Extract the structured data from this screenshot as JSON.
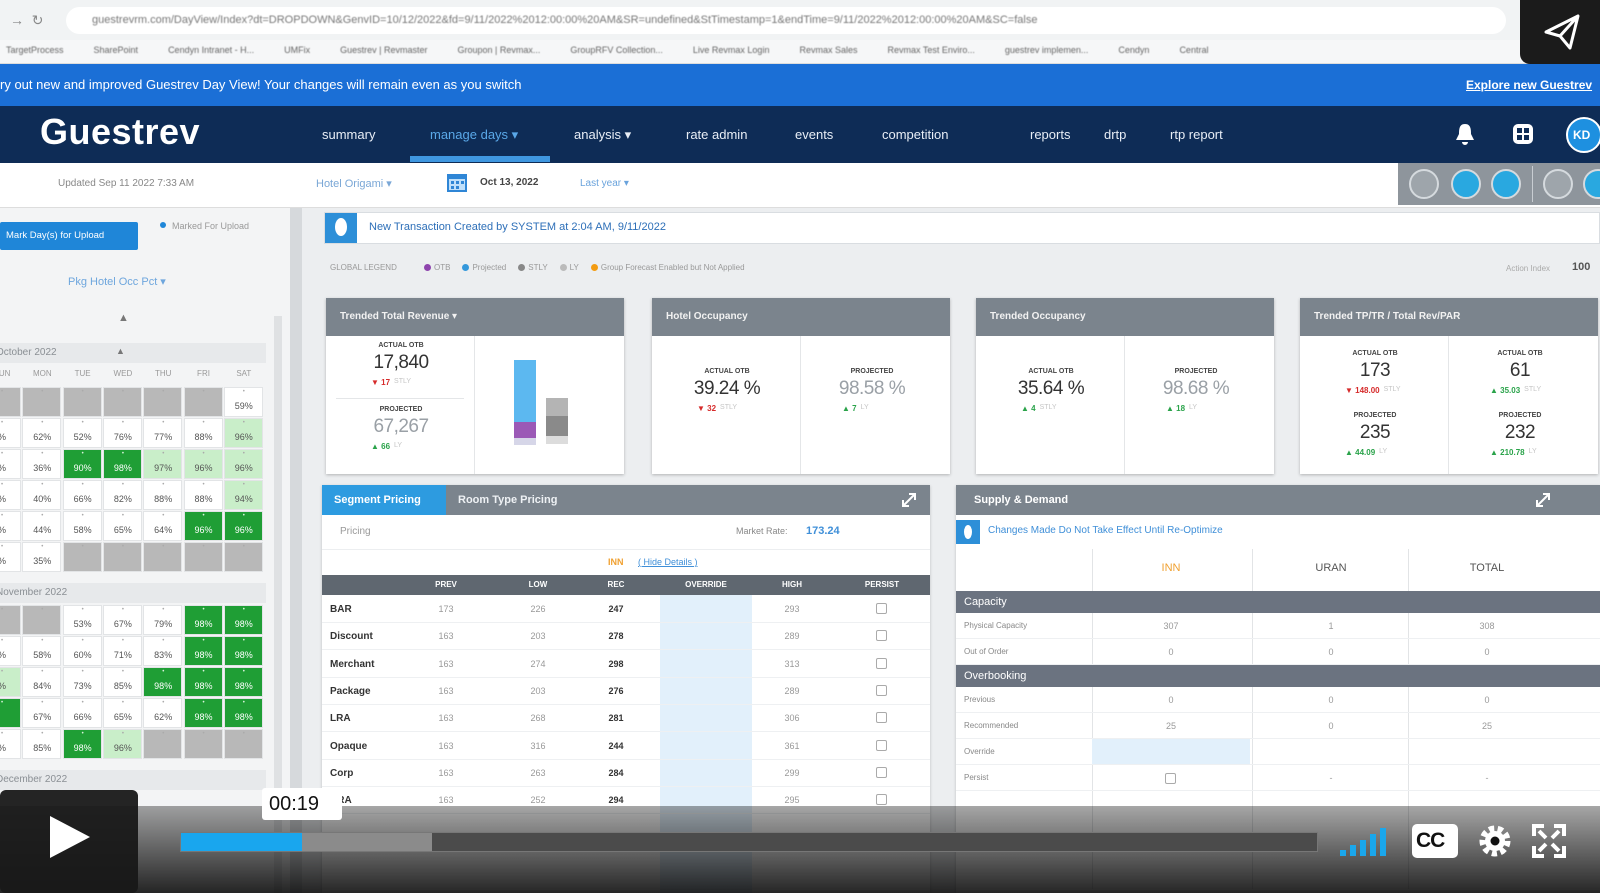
{
  "browser": {
    "url": "guestrevrm.com/DayView/Index?dt=DROPDOWN&GenvID=10/12/2022&fd=9/11/2022%2012:00:00%20AM&SR=undefined&StTimestamp=1&endTime=9/11/2022%2012:00:00%20AM&SC=false",
    "bookmarks": [
      "TargetProcess",
      "SharePoint",
      "Cendyn Intranet - H...",
      "UMFix",
      "Guestrev | Revmaster",
      "Groupon | Revmax...",
      "GroupRFV Collection...",
      "Live Revmax Login",
      "Revmax Sales",
      "Revmax Test Enviro...",
      "guestrev implemen...",
      "Cendyn",
      "Central"
    ]
  },
  "banner": {
    "message": "ry out new and improved Guestrev Day View! Your changes will remain even as you switch",
    "link": "Explore new Guestrev"
  },
  "nav": {
    "logo": "Guestrev",
    "items": [
      "summary",
      "manage days ▾",
      "analysis ▾",
      "rate admin",
      "events",
      "competition",
      "reports",
      "drtp",
      "rtp report"
    ],
    "active": 1,
    "avatar": "KD"
  },
  "subbar": {
    "updated": "Updated Sep 11 2022 7:33 AM",
    "hotel": "Hotel Origami ▾",
    "date": "Oct 13, 2022",
    "compare": "Last year ▾"
  },
  "left_panel": {
    "upload_button": "Mark Day(s) for Upload",
    "marked_label": "Marked For Upload",
    "metric_select": "Pkg Hotel Occ Pct ▾",
    "weekdays": [
      "SUN",
      "MON",
      "TUE",
      "WED",
      "THU",
      "FRI",
      "SAT"
    ],
    "months": [
      {
        "name": "October 2022",
        "rows": [
          [
            {
              "text": null,
              "color": "#b8b8b8"
            },
            {
              "text": null,
              "color": "#b8b8b8"
            },
            {
              "text": null,
              "color": "#b8b8b8"
            },
            {
              "text": null,
              "color": "#b8b8b8"
            },
            {
              "text": null,
              "color": "#b8b8b8"
            },
            {
              "text": null,
              "color": "#b8b8b8"
            },
            {
              "text": "59%",
              "color": "#ffffff"
            }
          ],
          [
            {
              "text": "%",
              "color": "#ffffff"
            },
            {
              "text": "62%",
              "color": "#ffffff"
            },
            {
              "text": "52%",
              "color": "#ffffff"
            },
            {
              "text": "76%",
              "color": "#ffffff"
            },
            {
              "text": "77%",
              "color": "#ffffff"
            },
            {
              "text": "88%",
              "color": "#ffffff"
            },
            {
              "text": "96%",
              "color": "#c9eec9"
            }
          ],
          [
            {
              "text": "%",
              "color": "#ffffff"
            },
            {
              "text": "36%",
              "color": "#ffffff"
            },
            {
              "text": "90%",
              "color": "#1f9e35"
            },
            {
              "text": "98%",
              "color": "#1f9e35"
            },
            {
              "text": "97%",
              "color": "#c9eec9"
            },
            {
              "text": "96%",
              "color": "#c9eec9"
            },
            {
              "text": "96%",
              "color": "#c9eec9"
            }
          ],
          [
            {
              "text": "%",
              "color": "#ffffff"
            },
            {
              "text": "40%",
              "color": "#ffffff"
            },
            {
              "text": "66%",
              "color": "#ffffff"
            },
            {
              "text": "82%",
              "color": "#ffffff"
            },
            {
              "text": "88%",
              "color": "#ffffff"
            },
            {
              "text": "88%",
              "color": "#ffffff"
            },
            {
              "text": "94%",
              "color": "#c9eec9"
            }
          ],
          [
            {
              "text": "%",
              "color": "#ffffff"
            },
            {
              "text": "44%",
              "color": "#ffffff"
            },
            {
              "text": "58%",
              "color": "#ffffff"
            },
            {
              "text": "65%",
              "color": "#ffffff"
            },
            {
              "text": "64%",
              "color": "#ffffff"
            },
            {
              "text": "96%",
              "color": "#1f9e35"
            },
            {
              "text": "96%",
              "color": "#1f9e35"
            }
          ],
          [
            {
              "text": "%",
              "color": "#ffffff"
            },
            {
              "text": "35%",
              "color": "#ffffff"
            },
            {
              "text": null,
              "color": "#b8b8b8"
            },
            {
              "text": null,
              "color": "#b8b8b8"
            },
            {
              "text": null,
              "color": "#b8b8b8"
            },
            {
              "text": null,
              "color": "#b8b8b8"
            },
            {
              "text": null,
              "color": "#b8b8b8"
            }
          ]
        ]
      },
      {
        "name": "November 2022",
        "rows": [
          [
            {
              "text": null,
              "color": "#b8b8b8"
            },
            {
              "text": null,
              "color": "#b8b8b8"
            },
            {
              "text": "53%",
              "color": "#ffffff"
            },
            {
              "text": "67%",
              "color": "#ffffff"
            },
            {
              "text": "79%",
              "color": "#ffffff"
            },
            {
              "text": "98%",
              "color": "#1f9e35"
            },
            {
              "text": "98%",
              "color": "#1f9e35"
            }
          ],
          [
            {
              "text": "%",
              "color": "#ffffff"
            },
            {
              "text": "58%",
              "color": "#ffffff"
            },
            {
              "text": "60%",
              "color": "#ffffff"
            },
            {
              "text": "71%",
              "color": "#ffffff"
            },
            {
              "text": "83%",
              "color": "#ffffff"
            },
            {
              "text": "98%",
              "color": "#1f9e35"
            },
            {
              "text": "98%",
              "color": "#1f9e35"
            }
          ],
          [
            {
              "text": "%",
              "color": "#c9eec9"
            },
            {
              "text": "84%",
              "color": "#ffffff"
            },
            {
              "text": "73%",
              "color": "#ffffff"
            },
            {
              "text": "85%",
              "color": "#ffffff"
            },
            {
              "text": "98%",
              "color": "#1f9e35"
            },
            {
              "text": "98%",
              "color": "#1f9e35"
            },
            {
              "text": "98%",
              "color": "#1f9e35"
            }
          ],
          [
            {
              "text": null,
              "color": "#1f9e35"
            },
            {
              "text": "67%",
              "color": "#ffffff"
            },
            {
              "text": "66%",
              "color": "#ffffff"
            },
            {
              "text": "65%",
              "color": "#ffffff"
            },
            {
              "text": "62%",
              "color": "#ffffff"
            },
            {
              "text": "98%",
              "color": "#1f9e35"
            },
            {
              "text": "98%",
              "color": "#1f9e35"
            }
          ],
          [
            {
              "text": "%",
              "color": "#ffffff"
            },
            {
              "text": "85%",
              "color": "#ffffff"
            },
            {
              "text": "98%",
              "color": "#1f9e35"
            },
            {
              "text": "96%",
              "color": "#c9eec9"
            },
            {
              "text": null,
              "color": "#b8b8b8"
            },
            {
              "text": null,
              "color": "#b8b8b8"
            },
            {
              "text": null,
              "color": "#b8b8b8"
            }
          ]
        ]
      },
      {
        "name": "December 2022",
        "rows": []
      }
    ]
  },
  "notification": "New Transaction Created by SYSTEM at 2:04 AM, 9/11/2022",
  "legend": {
    "title": "GLOBAL LEGEND",
    "items": [
      {
        "name": "OTB",
        "color": "#8e44ad"
      },
      {
        "name": "Projected",
        "color": "#3498db"
      },
      {
        "name": "STLY",
        "color": "#888888"
      },
      {
        "name": "LY",
        "color": "#bbbbbb"
      },
      {
        "name": "Group Forecast Enabled but Not Applied",
        "color": "#f39c12"
      }
    ],
    "index_label": "Action Index",
    "index_value": "100"
  },
  "cards": [
    {
      "title": "Trended Total Revenue ▾",
      "metrics": [
        {
          "label": "ACTUAL OTB",
          "value": "17,840",
          "delta": "▼ 17",
          "trend": "down",
          "ref": "STLY"
        },
        {
          "label": "PROJECTED",
          "value": "67,267",
          "delta": "▲ 66",
          "trend": "up",
          "ref": "LY"
        }
      ]
    },
    {
      "title": "Hotel Occupancy",
      "metrics": [
        {
          "label": "ACTUAL OTB",
          "value": "39.24 %",
          "delta": "▼ 32",
          "trend": "down",
          "ref": "STLY"
        },
        {
          "label": "PROJECTED",
          "value": "98.58 %",
          "delta": "▲ 7",
          "trend": "up",
          "ref": "LY"
        }
      ]
    },
    {
      "title": "Trended Occupancy",
      "metrics": [
        {
          "label": "ACTUAL OTB",
          "value": "35.64 %",
          "delta": "▲ 4",
          "trend": "up",
          "ref": "STLY"
        },
        {
          "label": "PROJECTED",
          "value": "98.68 %",
          "delta": "▲ 18",
          "trend": "up",
          "ref": "LY"
        }
      ]
    },
    {
      "title": "Trended TP/TR / Total Rev/PAR",
      "metrics": [
        {
          "label": "ACTUAL OTB",
          "value": "173",
          "delta": "▼ 148.00",
          "trend": "down",
          "ref": "STLY"
        },
        {
          "label": "ACTUAL OTB",
          "value": "61",
          "delta": "▲ 35.03",
          "trend": "up",
          "ref": "STLY"
        },
        {
          "label": "PROJECTED",
          "value": "235",
          "delta": "▲ 44.09",
          "trend": "up",
          "ref": "LY"
        },
        {
          "label": "PROJECTED",
          "value": "232",
          "delta": "▲ 210.78",
          "trend": "up",
          "ref": "LY"
        }
      ]
    }
  ],
  "pricing": {
    "tabs": [
      "Segment Pricing",
      "Room Type Pricing"
    ],
    "label": "Pricing",
    "market_rate_label": "Market Rate:",
    "market_rate": "173.24",
    "property": "INN",
    "details_link": "( Hide Details )",
    "columns": [
      "PREV",
      "LOW",
      "REC",
      "OVERRIDE",
      "HIGH",
      "PERSIST"
    ],
    "rows": [
      {
        "name": "BAR",
        "prev": "173",
        "low": "226",
        "rec": "247",
        "high": "293"
      },
      {
        "name": "Discount",
        "prev": "163",
        "low": "203",
        "rec": "278",
        "high": "289"
      },
      {
        "name": "Merchant",
        "prev": "163",
        "low": "274",
        "rec": "298",
        "high": "313"
      },
      {
        "name": "Package",
        "prev": "163",
        "low": "203",
        "rec": "276",
        "high": "289"
      },
      {
        "name": "LRA",
        "prev": "163",
        "low": "268",
        "rec": "281",
        "high": "306"
      },
      {
        "name": "Opaque",
        "prev": "163",
        "low": "316",
        "rec": "244",
        "high": "361"
      },
      {
        "name": "Corp",
        "prev": "163",
        "low": "263",
        "rec": "284",
        "high": "299"
      },
      {
        "name": "NRA",
        "prev": "163",
        "low": "252",
        "rec": "294",
        "high": "295"
      }
    ]
  },
  "supply_demand": {
    "title": "Supply & Demand",
    "notice": "Changes Made Do Not Take Effect Until Re-Optimize",
    "columns": [
      "INN",
      "URAN",
      "TOTAL"
    ],
    "sections": [
      {
        "name": "Capacity",
        "rows": [
          {
            "label": "Physical Capacity",
            "values": [
              "307",
              "1",
              "308"
            ]
          },
          {
            "label": "Out of Order",
            "values": [
              "0",
              "0",
              "0"
            ]
          }
        ]
      },
      {
        "name": "Overbooking",
        "rows": [
          {
            "label": "Previous",
            "values": [
              "0",
              "0",
              "0"
            ]
          },
          {
            "label": "Recommended",
            "values": [
              "25",
              "0",
              "25"
            ]
          },
          {
            "label": "Override",
            "values": [
              null,
              null,
              null
            ]
          },
          {
            "label": "Persist",
            "values": [
              null,
              "-",
              "-"
            ]
          }
        ]
      }
    ]
  },
  "video": {
    "time": "00:19",
    "captions": "CC"
  }
}
